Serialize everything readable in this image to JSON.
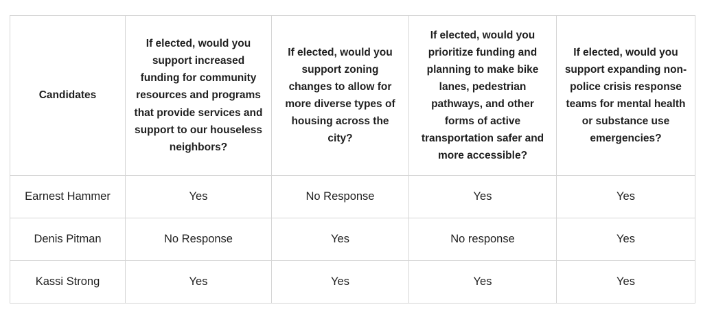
{
  "table": {
    "columns": [
      {
        "label": "Candidates"
      },
      {
        "label": "If elected, would you support increased funding for community resources and programs that provide services and support to our houseless neighbors?"
      },
      {
        "label": "If elected, would you support zoning changes to allow for more diverse types of housing across the city?"
      },
      {
        "label": "If elected, would you prioritize funding and planning to make bike lanes, pedestrian pathways, and other forms of active transportation safer and more accessible?"
      },
      {
        "label": "If elected, would you support expanding non-police crisis response teams for mental health or substance use emergencies?"
      }
    ],
    "rows": [
      {
        "candidate": "Earnest Hammer",
        "answers": [
          "Yes",
          "No Response",
          "Yes",
          "Yes"
        ]
      },
      {
        "candidate": "Denis Pitman",
        "answers": [
          "No Response",
          "Yes",
          "No response",
          "Yes"
        ]
      },
      {
        "candidate": "Kassi Strong",
        "answers": [
          "Yes",
          "Yes",
          "Yes",
          "Yes"
        ]
      }
    ]
  },
  "colors": {
    "border": "#d5d5d5",
    "text": "#1f1f1f",
    "background": "#ffffff"
  }
}
